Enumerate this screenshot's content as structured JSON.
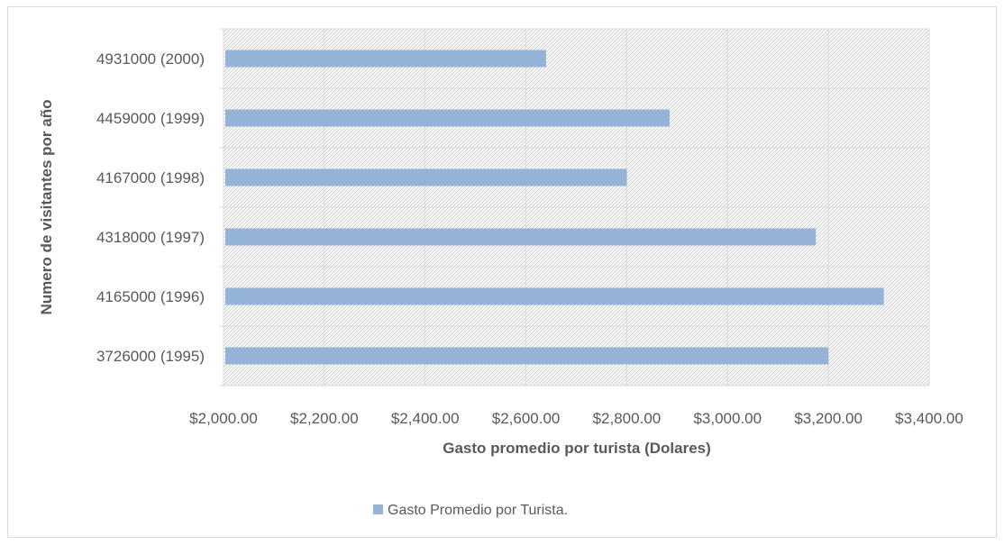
{
  "chart_data": {
    "type": "bar",
    "orientation": "horizontal",
    "categories": [
      "3726000 (1995)",
      "4165000 (1996)",
      "4318000 (1997)",
      "4167000 (1998)",
      "4459000 (1999)",
      "4931000 (2000)"
    ],
    "series": [
      {
        "name": "Gasto Promedio por Turista.",
        "values": [
          3200,
          3310,
          3175,
          2800,
          2885,
          2640
        ],
        "color": "#95b3d7"
      }
    ],
    "xlabel": "Gasto promedio por turista (Dolares)",
    "ylabel": "Numero de visitantes por año",
    "xlim": [
      2000,
      3400
    ],
    "xticks": [
      2000,
      2200,
      2400,
      2600,
      2800,
      3000,
      3200,
      3400
    ],
    "xtick_labels": [
      "$2,000.00",
      "$2,200.00",
      "$2,400.00",
      "$2,600.00",
      "$2,800.00",
      "$3,000.00",
      "$3,200.00",
      "$3,400.00"
    ],
    "grid": true,
    "legend_position": "bottom"
  }
}
